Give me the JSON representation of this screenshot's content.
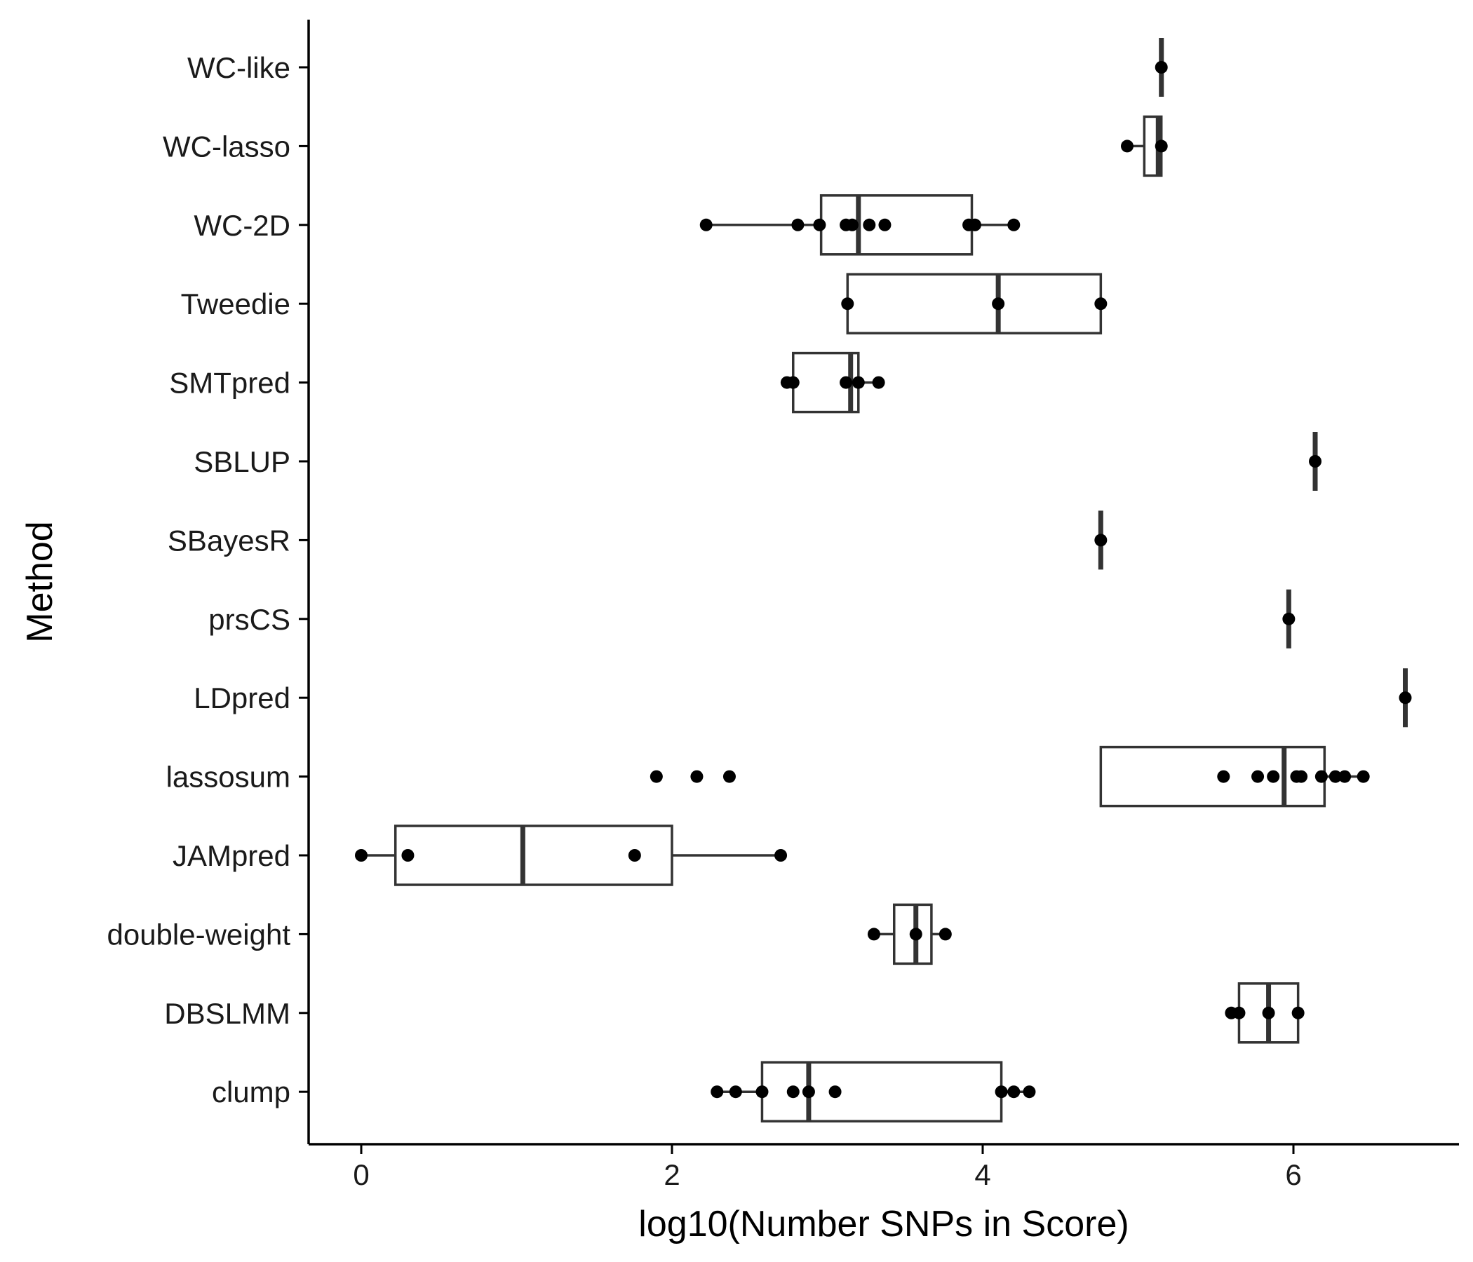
{
  "chart_data": {
    "type": "boxplot",
    "xlabel": "log10(Number SNPs in Score)",
    "ylabel": "Method",
    "xlim": [
      -0.34,
      7.05
    ],
    "xticks": [
      0,
      2,
      4,
      6
    ],
    "grid": false,
    "legend": "none",
    "categories": [
      "WC-like",
      "WC-lasso",
      "WC-2D",
      "Tweedie",
      "SMTpred",
      "SBLUP",
      "SBayesR",
      "prsCS",
      "LDpred",
      "lassosum",
      "JAMpred",
      "double-weight",
      "DBSLMM",
      "clump"
    ],
    "boxes": [
      {
        "name": "WC-like",
        "q1": 5.15,
        "median": 5.15,
        "q3": 5.15,
        "lower": 5.15,
        "upper": 5.15,
        "points": [
          5.15
        ]
      },
      {
        "name": "WC-lasso",
        "q1": 5.04,
        "median": 5.13,
        "q3": 5.15,
        "lower": 4.93,
        "upper": 5.15,
        "points": [
          4.93,
          5.15
        ]
      },
      {
        "name": "WC-2D",
        "q1": 2.96,
        "median": 3.2,
        "q3": 3.93,
        "lower": 2.22,
        "upper": 4.2,
        "points": [
          2.22,
          2.81,
          2.95,
          3.12,
          3.16,
          3.27,
          3.37,
          3.91,
          3.95,
          4.2
        ]
      },
      {
        "name": "Tweedie",
        "q1": 3.13,
        "median": 4.1,
        "q3": 4.76,
        "lower": 3.13,
        "upper": 4.76,
        "points": [
          3.13,
          4.1,
          4.76
        ]
      },
      {
        "name": "SMTpred",
        "q1": 2.78,
        "median": 3.15,
        "q3": 3.2,
        "lower": 2.74,
        "upper": 3.33,
        "points": [
          2.74,
          2.78,
          3.12,
          3.2,
          3.33
        ]
      },
      {
        "name": "SBLUP",
        "q1": 6.14,
        "median": 6.14,
        "q3": 6.14,
        "lower": 6.14,
        "upper": 6.14,
        "points": [
          6.14
        ]
      },
      {
        "name": "SBayesR",
        "q1": 4.76,
        "median": 4.76,
        "q3": 4.76,
        "lower": 4.76,
        "upper": 4.76,
        "points": [
          4.76
        ]
      },
      {
        "name": "prsCS",
        "q1": 5.97,
        "median": 5.97,
        "q3": 5.97,
        "lower": 5.97,
        "upper": 5.97,
        "points": [
          5.97
        ]
      },
      {
        "name": "LDpred",
        "q1": 6.72,
        "median": 6.72,
        "q3": 6.72,
        "lower": 6.72,
        "upper": 6.72,
        "points": [
          6.72
        ]
      },
      {
        "name": "lassosum",
        "q1": 4.76,
        "median": 5.94,
        "q3": 6.2,
        "lower": 4.76,
        "upper": 6.45,
        "points": [
          1.9,
          2.16,
          2.37,
          5.55,
          5.77,
          5.87,
          6.02,
          6.05,
          6.18,
          6.27,
          6.33,
          6.45
        ]
      },
      {
        "name": "JAMpred",
        "q1": 0.22,
        "median": 1.04,
        "q3": 2.0,
        "lower": 0.0,
        "upper": 2.7,
        "points": [
          0.0,
          0.3,
          1.76,
          2.7
        ]
      },
      {
        "name": "double-weight",
        "q1": 3.43,
        "median": 3.57,
        "q3": 3.67,
        "lower": 3.3,
        "upper": 3.76,
        "points": [
          3.3,
          3.57,
          3.76
        ]
      },
      {
        "name": "DBSLMM",
        "q1": 5.65,
        "median": 5.84,
        "q3": 6.03,
        "lower": 5.6,
        "upper": 6.03,
        "points": [
          5.6,
          5.65,
          5.84,
          6.03
        ]
      },
      {
        "name": "clump",
        "q1": 2.58,
        "median": 2.88,
        "q3": 4.12,
        "lower": 2.29,
        "upper": 4.3,
        "points": [
          2.29,
          2.41,
          2.58,
          2.78,
          2.88,
          3.05,
          4.12,
          4.2,
          4.3
        ]
      }
    ]
  }
}
